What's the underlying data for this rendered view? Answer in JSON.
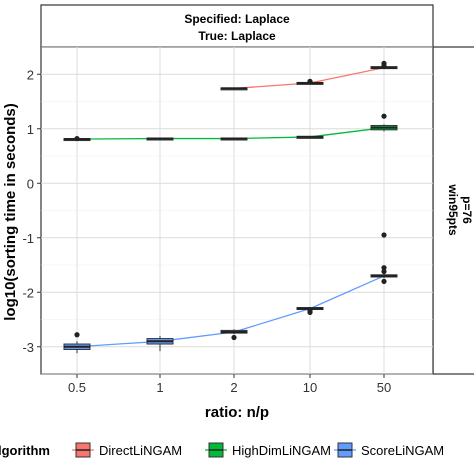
{
  "chart_data": {
    "type": "line",
    "facet": {
      "top_line1": "Specified:  Laplace",
      "top_line2": "True: Laplace",
      "right_line1": "win95pts",
      "right_line2": "p=76"
    },
    "xlabel": "ratio: n/p",
    "ylabel": "log10(sorting time in seconds)",
    "categories": [
      "0.5",
      "1",
      "2",
      "10",
      "50"
    ],
    "ylim": [
      -3.5,
      2.5
    ],
    "yticks": [
      -3,
      -2,
      -1,
      0,
      1,
      2
    ],
    "ytick_labels": [
      "-3",
      "-2",
      "-1",
      "0",
      "1",
      "2"
    ],
    "grid": true,
    "legend": {
      "title": "lgorithm",
      "position": "bottom",
      "entries": [
        "DirectLiNGAM",
        "HighDimLiNGAM",
        "ScoreLiNGAM"
      ]
    },
    "series": [
      {
        "name": "DirectLiNGAM",
        "color": "#F8766D",
        "points": [
          {
            "x": "2",
            "median": 1.74,
            "q1": 1.73,
            "q3": 1.75,
            "whisker_low": 1.73,
            "whisker_high": 1.75,
            "outliers": []
          },
          {
            "x": "10",
            "median": 1.84,
            "q1": 1.83,
            "q3": 1.85,
            "whisker_low": 1.82,
            "whisker_high": 1.86,
            "outliers": [
              1.87
            ]
          },
          {
            "x": "50",
            "median": 2.12,
            "q1": 2.11,
            "q3": 2.14,
            "whisker_low": 2.1,
            "whisker_high": 2.15,
            "outliers": [
              2.2,
              2.16
            ]
          }
        ]
      },
      {
        "name": "HighDimLiNGAM",
        "color": "#00BA38",
        "points": [
          {
            "x": "0.5",
            "median": 0.81,
            "q1": 0.8,
            "q3": 0.82,
            "whisker_low": 0.8,
            "whisker_high": 0.82,
            "outliers": [
              0.82
            ]
          },
          {
            "x": "1",
            "median": 0.82,
            "q1": 0.81,
            "q3": 0.83,
            "whisker_low": 0.81,
            "whisker_high": 0.83,
            "outliers": []
          },
          {
            "x": "2",
            "median": 0.82,
            "q1": 0.81,
            "q3": 0.83,
            "whisker_low": 0.81,
            "whisker_high": 0.83,
            "outliers": []
          },
          {
            "x": "10",
            "median": 0.85,
            "q1": 0.84,
            "q3": 0.86,
            "whisker_low": 0.84,
            "whisker_high": 0.86,
            "outliers": []
          },
          {
            "x": "50",
            "median": 1.02,
            "q1": 0.98,
            "q3": 1.06,
            "whisker_low": 0.95,
            "whisker_high": 1.08,
            "outliers": [
              1.23
            ]
          }
        ]
      },
      {
        "name": "ScoreLiNGAM",
        "color": "#619CFF",
        "points": [
          {
            "x": "0.5",
            "median": -3.0,
            "q1": -3.05,
            "q3": -2.95,
            "whisker_low": -3.12,
            "whisker_high": -2.9,
            "outliers": [
              -2.78
            ]
          },
          {
            "x": "1",
            "median": -2.9,
            "q1": -2.95,
            "q3": -2.85,
            "whisker_low": -3.08,
            "whisker_high": -2.8,
            "outliers": []
          },
          {
            "x": "2",
            "median": -2.73,
            "q1": -2.75,
            "q3": -2.7,
            "whisker_low": -2.77,
            "whisker_high": -2.68,
            "outliers": [
              -2.83
            ]
          },
          {
            "x": "10",
            "median": -2.3,
            "q1": -2.31,
            "q3": -2.28,
            "whisker_low": -2.32,
            "whisker_high": -2.27,
            "outliers": [
              -2.37,
              -2.34
            ]
          },
          {
            "x": "50",
            "median": -1.7,
            "q1": -1.72,
            "q3": -1.68,
            "whisker_low": -1.74,
            "whisker_high": -1.66,
            "outliers": [
              -0.95,
              -1.55,
              -1.62,
              -1.8
            ]
          }
        ]
      }
    ]
  }
}
